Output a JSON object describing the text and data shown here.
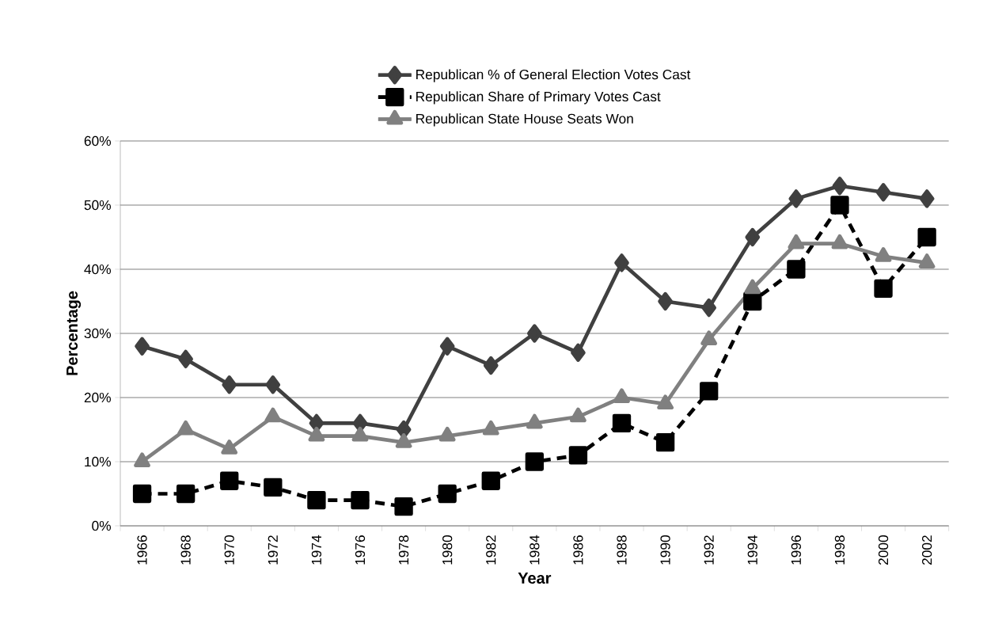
{
  "chart_data": {
    "type": "line",
    "xlabel": "Year",
    "ylabel": "Percentage",
    "categories": [
      "1966",
      "1968",
      "1970",
      "1972",
      "1974",
      "1976",
      "1978",
      "1980",
      "1982",
      "1984",
      "1986",
      "1988",
      "1990",
      "1992",
      "1994",
      "1996",
      "1998",
      "2000",
      "2002"
    ],
    "series": [
      {
        "name": "Republican % of General Election Votes Cast",
        "color": "#404040",
        "marker": "diamond",
        "line_style": "solid",
        "values": [
          28,
          26,
          22,
          22,
          16,
          16,
          15,
          28,
          25,
          30,
          27,
          41,
          35,
          34,
          45,
          51,
          53,
          52,
          51
        ]
      },
      {
        "name": "Republican Share of Primary Votes Cast",
        "color": "#000000",
        "marker": "square",
        "line_style": "dashed",
        "values": [
          5,
          5,
          7,
          6,
          4,
          4,
          3,
          5,
          7,
          10,
          11,
          16,
          13,
          21,
          35,
          40,
          50,
          37,
          45
        ]
      },
      {
        "name": "Republican State House Seats Won",
        "color": "#808080",
        "marker": "triangle",
        "line_style": "solid",
        "values": [
          10,
          15,
          12,
          17,
          14,
          14,
          13,
          14,
          15,
          16,
          17,
          20,
          19,
          29,
          37,
          44,
          44,
          42,
          41
        ]
      }
    ],
    "ylim": [
      0,
      60
    ],
    "yticks": [
      {
        "value": 0,
        "label": "0%"
      },
      {
        "value": 10,
        "label": "10%"
      },
      {
        "value": 20,
        "label": "20%"
      },
      {
        "value": 30,
        "label": "30%"
      },
      {
        "value": 40,
        "label": "40%"
      },
      {
        "value": 50,
        "label": "50%"
      },
      {
        "value": 60,
        "label": "60%"
      }
    ],
    "grid": "y",
    "legend": "top"
  }
}
